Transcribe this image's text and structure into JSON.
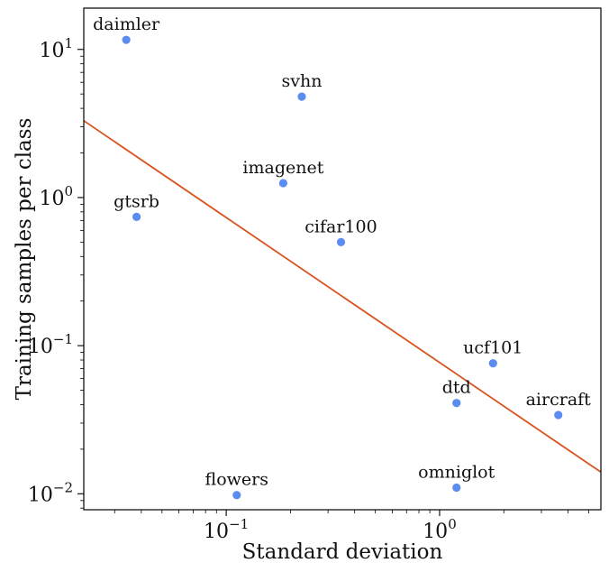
{
  "chart_data": {
    "type": "scatter",
    "title": "",
    "xlabel": "Standard deviation",
    "ylabel": "Training samples per class",
    "xscale": "log",
    "yscale": "log",
    "xlim": [
      0.0215,
      5.7
    ],
    "ylim": [
      0.0078,
      19.0
    ],
    "grid": false,
    "x_ticks": [
      {
        "value": 0.1,
        "base": "10",
        "exp": "−1"
      },
      {
        "value": 1,
        "base": "10",
        "exp": "0"
      }
    ],
    "y_ticks": [
      {
        "value": 0.01,
        "base": "10",
        "exp": "−2"
      },
      {
        "value": 0.1,
        "base": "10",
        "exp": "−1"
      },
      {
        "value": 1,
        "base": "10",
        "exp": "0"
      },
      {
        "value": 10,
        "base": "10",
        "exp": "1"
      }
    ],
    "points": [
      {
        "label": "daimler",
        "x": 0.034,
        "y": 11.6
      },
      {
        "label": "svhn",
        "x": 0.226,
        "y": 4.8
      },
      {
        "label": "imagenet",
        "x": 0.185,
        "y": 1.25
      },
      {
        "label": "gtsrb",
        "x": 0.038,
        "y": 0.74
      },
      {
        "label": "cifar100",
        "x": 0.345,
        "y": 0.5
      },
      {
        "label": "ucf101",
        "x": 1.78,
        "y": 0.076
      },
      {
        "label": "dtd",
        "x": 1.2,
        "y": 0.041
      },
      {
        "label": "aircraft",
        "x": 3.6,
        "y": 0.034
      },
      {
        "label": "flowers",
        "x": 0.112,
        "y": 0.0098
      },
      {
        "label": "omniglot",
        "x": 1.2,
        "y": 0.011
      }
    ],
    "fit_line": {
      "x": [
        0.0215,
        5.7
      ],
      "y": [
        3.3,
        0.014
      ]
    },
    "colors": {
      "points": "#5b8cf0",
      "line": "#d9531e",
      "axes": "#000000"
    }
  }
}
